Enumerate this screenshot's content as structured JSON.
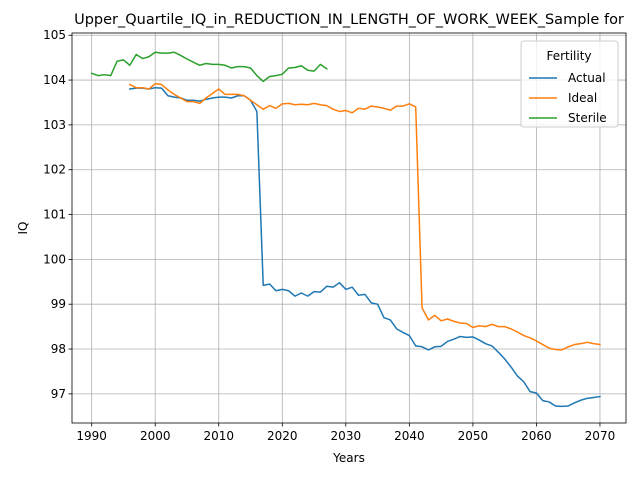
{
  "chart_data": {
    "type": "line",
    "title": "Upper_Quartile_IQ_in_REDUCTION_IN_LENGTH_OF_WORK_WEEK_Sample for",
    "xlabel": "Years",
    "ylabel": "IQ",
    "xlim": [
      1986.9,
      2074.1
    ],
    "ylim": [
      96.35,
      105.05
    ],
    "xticks": [
      1990,
      2000,
      2010,
      2020,
      2030,
      2040,
      2050,
      2060,
      2070
    ],
    "yticks": [
      97,
      98,
      99,
      100,
      101,
      102,
      103,
      104,
      105
    ],
    "grid": true,
    "legend": {
      "title": "Fertility",
      "placement": "top-right"
    },
    "series": [
      {
        "name": "Actual",
        "color": "#1f77b4",
        "x": [
          1996,
          1997,
          1998,
          1999,
          2000,
          2001,
          2002,
          2003,
          2004,
          2005,
          2006,
          2007,
          2008,
          2009,
          2010,
          2011,
          2012,
          2013,
          2014,
          2015,
          2016,
          2017,
          2018,
          2019,
          2020,
          2021,
          2022,
          2023,
          2024,
          2025,
          2026,
          2027,
          2028,
          2029,
          2030,
          2031,
          2032,
          2033,
          2034,
          2035,
          2036,
          2037,
          2038,
          2039,
          2040,
          2041,
          2042,
          2043,
          2044,
          2045,
          2046,
          2047,
          2048,
          2049,
          2050,
          2051,
          2052,
          2053,
          2054,
          2055,
          2056,
          2057,
          2058,
          2059,
          2060,
          2061,
          2062,
          2063,
          2064,
          2065,
          2066,
          2067,
          2068,
          2069,
          2070
        ],
        "values": [
          103.8,
          103.82,
          103.82,
          103.8,
          103.83,
          103.82,
          103.65,
          103.62,
          103.6,
          103.55,
          103.55,
          103.53,
          103.57,
          103.6,
          103.62,
          103.62,
          103.6,
          103.65,
          103.65,
          103.55,
          103.3,
          99.42,
          99.45,
          99.3,
          99.33,
          99.3,
          99.18,
          99.25,
          99.18,
          99.28,
          99.27,
          99.4,
          99.38,
          99.48,
          99.33,
          99.38,
          99.2,
          99.22,
          99.03,
          99.0,
          98.7,
          98.65,
          98.45,
          98.37,
          98.3,
          98.07,
          98.05,
          97.98,
          98.05,
          98.06,
          98.17,
          98.22,
          98.28,
          98.26,
          98.27,
          98.2,
          98.12,
          98.07,
          97.93,
          97.78,
          97.6,
          97.4,
          97.27,
          97.05,
          97.02,
          96.85,
          96.82,
          96.73,
          96.72,
          96.73,
          96.8,
          96.86,
          96.9,
          96.92,
          96.94
        ]
      },
      {
        "name": "Ideal",
        "color": "#ff7f0e",
        "x": [
          1996,
          1997,
          1998,
          1999,
          2000,
          2001,
          2002,
          2003,
          2004,
          2005,
          2006,
          2007,
          2008,
          2009,
          2010,
          2011,
          2012,
          2013,
          2014,
          2015,
          2016,
          2017,
          2018,
          2019,
          2020,
          2021,
          2022,
          2023,
          2024,
          2025,
          2026,
          2027,
          2028,
          2029,
          2030,
          2031,
          2032,
          2033,
          2034,
          2035,
          2036,
          2037,
          2038,
          2039,
          2040,
          2041,
          2042,
          2043,
          2044,
          2045,
          2046,
          2047,
          2048,
          2049,
          2050,
          2051,
          2052,
          2053,
          2054,
          2055,
          2056,
          2057,
          2058,
          2059,
          2060,
          2061,
          2062,
          2063,
          2064,
          2065,
          2066,
          2067,
          2068,
          2069,
          2070
        ],
        "values": [
          103.9,
          103.83,
          103.83,
          103.8,
          103.92,
          103.9,
          103.78,
          103.68,
          103.6,
          103.52,
          103.52,
          103.48,
          103.6,
          103.7,
          103.8,
          103.68,
          103.68,
          103.68,
          103.65,
          103.55,
          103.45,
          103.35,
          103.43,
          103.37,
          103.47,
          103.48,
          103.45,
          103.46,
          103.45,
          103.48,
          103.45,
          103.43,
          103.35,
          103.3,
          103.32,
          103.27,
          103.37,
          103.35,
          103.42,
          103.4,
          103.37,
          103.33,
          103.42,
          103.42,
          103.47,
          103.4,
          98.92,
          98.65,
          98.75,
          98.63,
          98.67,
          98.62,
          98.58,
          98.57,
          98.48,
          98.52,
          98.5,
          98.55,
          98.5,
          98.5,
          98.45,
          98.38,
          98.3,
          98.25,
          98.18,
          98.1,
          98.02,
          97.99,
          97.98,
          98.05,
          98.1,
          98.12,
          98.15,
          98.12,
          98.1
        ]
      },
      {
        "name": "Sterile",
        "color": "#2ca02c",
        "x": [
          1990,
          1991,
          1992,
          1993,
          1994,
          1995,
          1996,
          1997,
          1998,
          1999,
          2000,
          2001,
          2002,
          2003,
          2004,
          2005,
          2006,
          2007,
          2008,
          2009,
          2010,
          2011,
          2012,
          2013,
          2014,
          2015,
          2016,
          2017,
          2018,
          2019,
          2020,
          2021,
          2022,
          2023,
          2024,
          2025,
          2026,
          2027
        ],
        "values": [
          104.15,
          104.1,
          104.12,
          104.1,
          104.42,
          104.45,
          104.33,
          104.57,
          104.48,
          104.52,
          104.62,
          104.6,
          104.6,
          104.62,
          104.55,
          104.47,
          104.4,
          104.33,
          104.37,
          104.35,
          104.35,
          104.33,
          104.27,
          104.3,
          104.3,
          104.27,
          104.1,
          103.97,
          104.08,
          104.1,
          104.13,
          104.27,
          104.28,
          104.32,
          104.22,
          104.2,
          104.35,
          104.25
        ]
      }
    ]
  }
}
